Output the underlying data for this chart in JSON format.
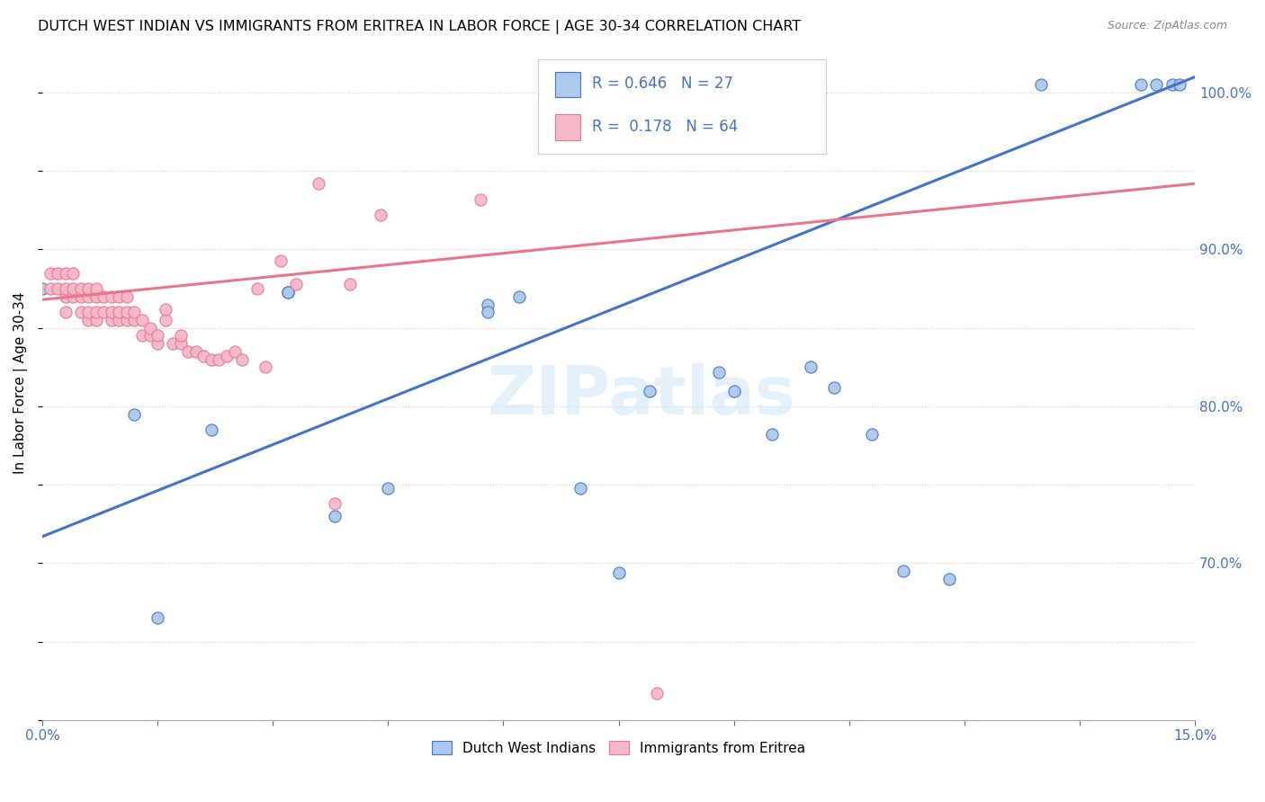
{
  "title": "DUTCH WEST INDIAN VS IMMIGRANTS FROM ERITREA IN LABOR FORCE | AGE 30-34 CORRELATION CHART",
  "source": "Source: ZipAtlas.com",
  "ylabel": "In Labor Force | Age 30-34",
  "xlim": [
    0.0,
    0.15
  ],
  "ylim": [
    0.6,
    1.03
  ],
  "blue_R": 0.646,
  "blue_N": 27,
  "pink_R": 0.178,
  "pink_N": 64,
  "blue_color": "#adc9ed",
  "pink_color": "#f5b8c8",
  "line_blue": "#4472c4",
  "line_pink": "#e8758a",
  "legend_text_color": "#4472c4",
  "watermark": "ZIPatlas",
  "blue_points_x": [
    0.0,
    0.012,
    0.015,
    0.022,
    0.032,
    0.032,
    0.038,
    0.045,
    0.058,
    0.058,
    0.062,
    0.07,
    0.075,
    0.079,
    0.088,
    0.09,
    0.095,
    0.1,
    0.103,
    0.108,
    0.112,
    0.118,
    0.13,
    0.143,
    0.145,
    0.147,
    0.148
  ],
  "blue_points_y": [
    0.875,
    0.795,
    0.665,
    0.785,
    0.873,
    0.873,
    0.73,
    0.748,
    0.865,
    0.86,
    0.87,
    0.748,
    0.694,
    0.81,
    0.822,
    0.81,
    0.782,
    0.825,
    0.812,
    0.782,
    0.695,
    0.69,
    1.005,
    1.005,
    1.005,
    1.005,
    1.005
  ],
  "pink_points_x": [
    0.001,
    0.001,
    0.002,
    0.002,
    0.003,
    0.003,
    0.003,
    0.003,
    0.004,
    0.004,
    0.004,
    0.005,
    0.005,
    0.005,
    0.006,
    0.006,
    0.006,
    0.006,
    0.007,
    0.007,
    0.007,
    0.007,
    0.008,
    0.008,
    0.009,
    0.009,
    0.009,
    0.01,
    0.01,
    0.01,
    0.011,
    0.011,
    0.011,
    0.012,
    0.012,
    0.013,
    0.013,
    0.014,
    0.014,
    0.015,
    0.015,
    0.016,
    0.016,
    0.017,
    0.018,
    0.018,
    0.019,
    0.02,
    0.021,
    0.022,
    0.023,
    0.024,
    0.025,
    0.026,
    0.028,
    0.029,
    0.031,
    0.033,
    0.036,
    0.038,
    0.04,
    0.044,
    0.057,
    0.08
  ],
  "pink_points_y": [
    0.875,
    0.885,
    0.875,
    0.885,
    0.86,
    0.87,
    0.875,
    0.885,
    0.87,
    0.875,
    0.885,
    0.86,
    0.87,
    0.875,
    0.855,
    0.86,
    0.87,
    0.875,
    0.855,
    0.86,
    0.87,
    0.875,
    0.86,
    0.87,
    0.855,
    0.86,
    0.87,
    0.855,
    0.86,
    0.87,
    0.855,
    0.86,
    0.87,
    0.855,
    0.86,
    0.845,
    0.855,
    0.845,
    0.85,
    0.84,
    0.845,
    0.855,
    0.862,
    0.84,
    0.84,
    0.845,
    0.835,
    0.835,
    0.832,
    0.83,
    0.83,
    0.832,
    0.835,
    0.83,
    0.875,
    0.825,
    0.893,
    0.878,
    0.942,
    0.738,
    0.878,
    0.922,
    0.932,
    0.617
  ],
  "blue_trend_x": [
    0.0,
    0.15
  ],
  "blue_trend_y": [
    0.717,
    1.01
  ],
  "pink_trend_x": [
    0.0,
    0.15
  ],
  "pink_trend_y": [
    0.868,
    0.942
  ],
  "xtick_positions": [
    0.0,
    0.015,
    0.03,
    0.045,
    0.06,
    0.075,
    0.09,
    0.105,
    0.12,
    0.135,
    0.15
  ],
  "xtick_labels": [
    "0.0%",
    "",
    "",
    "",
    "",
    "",
    "",
    "",
    "",
    "",
    "15.0%"
  ],
  "ytick_positions": [
    0.6,
    0.65,
    0.7,
    0.75,
    0.8,
    0.85,
    0.9,
    0.95,
    1.0
  ],
  "ytick_labels_right": [
    "",
    "",
    "70.0%",
    "",
    "80.0%",
    "",
    "90.0%",
    "",
    "100.0%"
  ]
}
